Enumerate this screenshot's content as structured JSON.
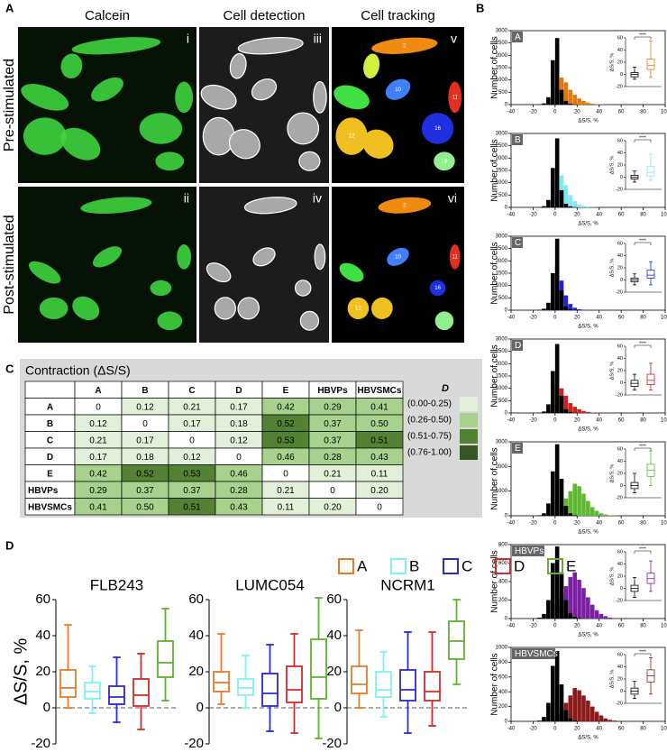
{
  "panel_a": {
    "label": "A",
    "columns": [
      "Calcein",
      "Cell detection",
      "Cell tracking"
    ],
    "rows": [
      "Pre-stimulated",
      "Post-stimulated"
    ],
    "image_labels": [
      [
        "i",
        "iii",
        "v"
      ],
      [
        "ii",
        "iv",
        "vi"
      ]
    ],
    "cell_ids": [
      [
        "2",
        "10",
        "11",
        "12",
        "16",
        "18"
      ],
      [
        "2",
        "10",
        "11",
        "12",
        "16"
      ]
    ]
  },
  "panel_b": {
    "label": "B",
    "type": "histogram",
    "y_label": "Number of cells",
    "x_label": "ΔS/S, %",
    "xlim": [
      -40,
      100
    ],
    "xticks": [
      -40,
      -20,
      0,
      20,
      40,
      60,
      80,
      100
    ],
    "bins": [
      -20,
      -16,
      -12,
      -8,
      -4,
      0,
      4,
      8,
      12,
      16,
      20,
      24,
      28,
      32,
      36,
      40,
      44,
      48,
      52,
      56,
      60
    ],
    "pre_color": "#000000",
    "inset_ylabel": "ΔS/S, %",
    "inset_ylim": [
      -20,
      60
    ],
    "inset_yticks": [
      -20,
      0,
      20,
      40,
      60
    ],
    "significance": "****",
    "panels": [
      {
        "name": "A",
        "color": "#e07a10",
        "ylim": [
          0,
          3000
        ],
        "yticks": [
          0,
          500,
          1000,
          1500,
          2000,
          2500,
          3000
        ],
        "pre": [
          0,
          10,
          50,
          300,
          1800,
          2700,
          600,
          150,
          40,
          10,
          0,
          0,
          0,
          0,
          0,
          0,
          0,
          0,
          0,
          0
        ],
        "post": [
          0,
          0,
          10,
          50,
          300,
          800,
          1100,
          900,
          600,
          400,
          250,
          150,
          80,
          40,
          20,
          10,
          5,
          0,
          0,
          0
        ],
        "pre_box": [
          -8,
          -4,
          0,
          3,
          12
        ],
        "post_box": [
          -5,
          8,
          15,
          25,
          55
        ]
      },
      {
        "name": "B",
        "color": "#80e8f0",
        "ylim": [
          0,
          3000
        ],
        "yticks": [
          0,
          500,
          1000,
          1500,
          2000,
          2500,
          3000
        ],
        "pre": [
          0,
          10,
          50,
          300,
          1600,
          2800,
          700,
          150,
          40,
          10,
          0,
          0,
          0,
          0,
          0,
          0,
          0,
          0,
          0,
          0
        ],
        "post": [
          0,
          0,
          10,
          50,
          400,
          1100,
          1300,
          900,
          500,
          250,
          120,
          60,
          30,
          10,
          5,
          0,
          0,
          0,
          0,
          0
        ],
        "pre_box": [
          -8,
          -3,
          0,
          3,
          10
        ],
        "post_box": [
          -5,
          2,
          8,
          18,
          38
        ]
      },
      {
        "name": "C",
        "color": "#2020e0",
        "ylim": [
          0,
          3000
        ],
        "yticks": [
          0,
          500,
          1000,
          1500,
          2000,
          2500,
          3000
        ],
        "pre": [
          0,
          10,
          60,
          300,
          1500,
          2900,
          800,
          150,
          40,
          10,
          0,
          0,
          0,
          0,
          0,
          0,
          0,
          0,
          0,
          0
        ],
        "post": [
          0,
          0,
          10,
          80,
          600,
          1800,
          1200,
          600,
          250,
          100,
          40,
          15,
          5,
          0,
          0,
          0,
          0,
          0,
          0,
          0
        ],
        "pre_box": [
          -8,
          -3,
          0,
          3,
          10
        ],
        "post_box": [
          -8,
          3,
          8,
          16,
          30
        ]
      },
      {
        "name": "D",
        "color": "#d02020",
        "ylim": [
          0,
          3000
        ],
        "yticks": [
          0,
          500,
          1000,
          1500,
          2000,
          2500,
          3000
        ],
        "pre": [
          0,
          10,
          60,
          350,
          1700,
          2800,
          700,
          150,
          40,
          10,
          0,
          0,
          0,
          0,
          0,
          0,
          0,
          0,
          0,
          0
        ],
        "post": [
          0,
          0,
          20,
          100,
          400,
          1100,
          1000,
          700,
          400,
          250,
          150,
          80,
          40,
          20,
          10,
          5,
          0,
          0,
          0,
          0
        ],
        "pre_box": [
          -12,
          -6,
          -1,
          4,
          14
        ],
        "post_box": [
          -12,
          -3,
          4,
          14,
          32
        ]
      },
      {
        "name": "E",
        "color": "#60b830",
        "ylim": [
          0,
          3000
        ],
        "yticks": [
          0,
          1000,
          2000,
          3000
        ],
        "pre": [
          0,
          20,
          100,
          500,
          1800,
          2900,
          1500,
          400,
          100,
          20,
          0,
          0,
          0,
          0,
          0,
          0,
          0,
          0,
          0,
          0
        ],
        "post": [
          0,
          0,
          10,
          30,
          80,
          200,
          400,
          700,
          1000,
          1300,
          1200,
          900,
          600,
          350,
          200,
          100,
          50,
          20,
          10,
          0
        ],
        "pre_box": [
          -12,
          -5,
          0,
          5,
          20
        ],
        "post_box": [
          0,
          15,
          25,
          35,
          57
        ]
      },
      {
        "name": "HBVPs",
        "color": "#7a1fa2",
        "ylim": [
          0,
          800
        ],
        "yticks": [
          0,
          200,
          400,
          600,
          800
        ],
        "pre": [
          0,
          10,
          50,
          200,
          600,
          780,
          500,
          200,
          60,
          20,
          5,
          0,
          0,
          0,
          0,
          0,
          0,
          0,
          0,
          0
        ],
        "post": [
          0,
          0,
          5,
          20,
          60,
          150,
          250,
          350,
          450,
          500,
          420,
          330,
          230,
          150,
          90,
          50,
          25,
          10,
          5,
          0
        ],
        "pre_box": [
          -15,
          -5,
          0,
          5,
          18
        ],
        "post_box": [
          -5,
          8,
          16,
          25,
          45
        ]
      },
      {
        "name": "HBVSMCs",
        "color": "#8b1a1a",
        "ylim": [
          0,
          1000
        ],
        "yticks": [
          0,
          200,
          400,
          600,
          800,
          1000
        ],
        "pre": [
          0,
          10,
          60,
          250,
          750,
          950,
          500,
          150,
          40,
          10,
          0,
          0,
          0,
          0,
          0,
          0,
          0,
          0,
          0,
          0
        ],
        "post": [
          0,
          0,
          0,
          10,
          30,
          80,
          150,
          250,
          350,
          450,
          420,
          350,
          280,
          200,
          130,
          80,
          40,
          20,
          10,
          5
        ],
        "pre_box": [
          -12,
          -5,
          0,
          5,
          16
        ],
        "post_box": [
          -5,
          15,
          25,
          35,
          55
        ]
      }
    ]
  },
  "panel_c": {
    "label": "C",
    "title": "Contraction (ΔS/S)",
    "columns": [
      "A",
      "B",
      "C",
      "D",
      "E",
      "HBVPs",
      "HBVSMCs"
    ],
    "rows": [
      {
        "name": "A",
        "cells": [
          "0",
          "0.12",
          "0.21",
          "0.17",
          "0.42",
          "0.29",
          "0.41"
        ]
      },
      {
        "name": "B",
        "cells": [
          "0.12",
          "0",
          "0.17",
          "0.18",
          "0.52",
          "0.37",
          "0.50"
        ]
      },
      {
        "name": "C",
        "cells": [
          "0.21",
          "0.17",
          "0",
          "0.12",
          "0.53",
          "0.37",
          "0.51"
        ]
      },
      {
        "name": "D",
        "cells": [
          "0.17",
          "0.18",
          "0.12",
          "0",
          "0.46",
          "0.28",
          "0.43"
        ]
      },
      {
        "name": "E",
        "cells": [
          "0.42",
          "0.52",
          "0.53",
          "0.46",
          "0",
          "0.21",
          "0.11"
        ]
      },
      {
        "name": "HBVPs",
        "cells": [
          "0.29",
          "0.37",
          "0.37",
          "0.28",
          "0.21",
          "0",
          "0.20"
        ]
      },
      {
        "name": "HBVSMCs",
        "cells": [
          "0.41",
          "0.50",
          "0.51",
          "0.43",
          "0.11",
          "0.20",
          "0"
        ]
      }
    ],
    "legend_title": "D",
    "legend": [
      {
        "label": "(0.00-0.25)",
        "min": 0,
        "max": 0.25,
        "color": "#e2efd9"
      },
      {
        "label": "(0.26-0.50)",
        "min": 0.26,
        "max": 0.5,
        "color": "#a9d18e"
      },
      {
        "label": "(0.51-0.75)",
        "min": 0.51,
        "max": 0.75,
        "color": "#548235"
      },
      {
        "label": "(0.76-1.00)",
        "min": 0.76,
        "max": 1,
        "color": "#375623"
      }
    ]
  },
  "panel_d": {
    "label": "D",
    "type": "box",
    "y_label": "ΔS/S, %",
    "ylim": [
      -20,
      60
    ],
    "yticks": [
      -20,
      0,
      20,
      40,
      60
    ],
    "series": [
      {
        "name": "A",
        "color": "#e87a2a"
      },
      {
        "name": "B",
        "color": "#80f0f0"
      },
      {
        "name": "C",
        "color": "#2a2ad0"
      },
      {
        "name": "D",
        "color": "#d42a2a"
      },
      {
        "name": "E",
        "color": "#60b030"
      }
    ],
    "charts": [
      {
        "title": "FLB243",
        "boxes": [
          [
            0,
            6,
            11,
            21,
            46
          ],
          [
            -3,
            5,
            9,
            14,
            23
          ],
          [
            -8,
            2,
            6,
            12,
            28
          ],
          [
            -12,
            1,
            7,
            16,
            30
          ],
          [
            4,
            17,
            25,
            37,
            55
          ]
        ]
      },
      {
        "title": "LUMC054",
        "boxes": [
          [
            2,
            9,
            14,
            20,
            41
          ],
          [
            0,
            7,
            11,
            16,
            29
          ],
          [
            -13,
            1,
            8,
            19,
            35
          ],
          [
            -14,
            3,
            10,
            23,
            41
          ],
          [
            -17,
            5,
            17,
            38,
            61
          ]
        ]
      },
      {
        "title": "NCRM1",
        "boxes": [
          [
            0,
            8,
            13,
            23,
            43
          ],
          [
            -5,
            6,
            10,
            20,
            31
          ],
          [
            -14,
            4,
            10,
            21,
            42
          ],
          [
            -10,
            4,
            9,
            20,
            42
          ],
          [
            13,
            27,
            37,
            48,
            60
          ]
        ]
      }
    ]
  }
}
